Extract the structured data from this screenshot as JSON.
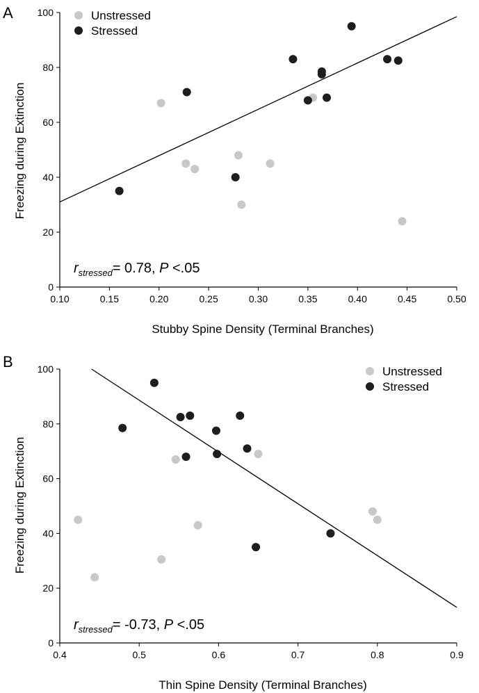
{
  "colors": {
    "unstressed": "#c8c8c8",
    "stressed": "#1e1e1e"
  },
  "chart_data": [
    {
      "panel_label": "A",
      "type": "scatter",
      "xlabel": "Stubby Spine Density (Terminal Branches)",
      "ylabel": "Freezing during Extinction",
      "xlim": [
        0.1,
        0.5
      ],
      "ylim": [
        0,
        100
      ],
      "xticks": [
        "0.10",
        "0.15",
        "0.20",
        "0.25",
        "0.30",
        "0.35",
        "0.40",
        "0.45",
        "0.50"
      ],
      "yticks": [
        "0",
        "20",
        "40",
        "60",
        "80",
        "100"
      ],
      "legend_position": "top-left",
      "legend": [
        "Unstressed",
        "Stressed"
      ],
      "stat": {
        "r_symbol": "r",
        "subscript": "stressed",
        "value": "= 0.78, ",
        "p_symbol": "P",
        "p_value": " <.05"
      },
      "fit_line": {
        "x": [
          0.1,
          0.5
        ],
        "y": [
          31,
          98.5
        ]
      },
      "series": [
        {
          "name": "Unstressed",
          "points": [
            {
              "x": 0.202,
              "y": 67
            },
            {
              "x": 0.227,
              "y": 45
            },
            {
              "x": 0.236,
              "y": 43
            },
            {
              "x": 0.28,
              "y": 48
            },
            {
              "x": 0.283,
              "y": 30
            },
            {
              "x": 0.312,
              "y": 45
            },
            {
              "x": 0.355,
              "y": 69
            },
            {
              "x": 0.445,
              "y": 24
            }
          ]
        },
        {
          "name": "Stressed",
          "points": [
            {
              "x": 0.16,
              "y": 35
            },
            {
              "x": 0.228,
              "y": 71
            },
            {
              "x": 0.277,
              "y": 40
            },
            {
              "x": 0.335,
              "y": 83
            },
            {
              "x": 0.35,
              "y": 68
            },
            {
              "x": 0.364,
              "y": 77.5
            },
            {
              "x": 0.364,
              "y": 78.5
            },
            {
              "x": 0.369,
              "y": 69
            },
            {
              "x": 0.394,
              "y": 95
            },
            {
              "x": 0.43,
              "y": 83
            },
            {
              "x": 0.441,
              "y": 82.5
            }
          ]
        }
      ]
    },
    {
      "panel_label": "B",
      "type": "scatter",
      "xlabel": "Thin Spine Density (Terminal Branches)",
      "ylabel": "Freezing during Extinction",
      "xlim": [
        0.4,
        0.9
      ],
      "ylim": [
        0,
        100
      ],
      "xticks": [
        "0.4",
        "0.5",
        "0.6",
        "0.7",
        "0.8",
        "0.9"
      ],
      "yticks": [
        "0",
        "20",
        "40",
        "60",
        "80",
        "100"
      ],
      "legend_position": "top-right",
      "legend": [
        "Unstressed",
        "Stressed"
      ],
      "stat": {
        "r_symbol": "r",
        "subscript": "stressed",
        "value": "= -0.73, ",
        "p_symbol": "P",
        "p_value": " <.05"
      },
      "fit_line": {
        "x": [
          0.44,
          0.9
        ],
        "y": [
          100,
          13
        ]
      },
      "series": [
        {
          "name": "Unstressed",
          "points": [
            {
              "x": 0.423,
              "y": 45
            },
            {
              "x": 0.444,
              "y": 24
            },
            {
              "x": 0.528,
              "y": 30.5
            },
            {
              "x": 0.546,
              "y": 67
            },
            {
              "x": 0.574,
              "y": 43
            },
            {
              "x": 0.65,
              "y": 69
            },
            {
              "x": 0.794,
              "y": 48
            },
            {
              "x": 0.8,
              "y": 45
            }
          ]
        },
        {
          "name": "Stressed",
          "points": [
            {
              "x": 0.479,
              "y": 78.5
            },
            {
              "x": 0.519,
              "y": 95
            },
            {
              "x": 0.552,
              "y": 82.5
            },
            {
              "x": 0.559,
              "y": 68
            },
            {
              "x": 0.564,
              "y": 83
            },
            {
              "x": 0.597,
              "y": 77.5
            },
            {
              "x": 0.598,
              "y": 69
            },
            {
              "x": 0.627,
              "y": 83
            },
            {
              "x": 0.636,
              "y": 71
            },
            {
              "x": 0.647,
              "y": 35
            },
            {
              "x": 0.741,
              "y": 40
            }
          ]
        }
      ]
    }
  ]
}
